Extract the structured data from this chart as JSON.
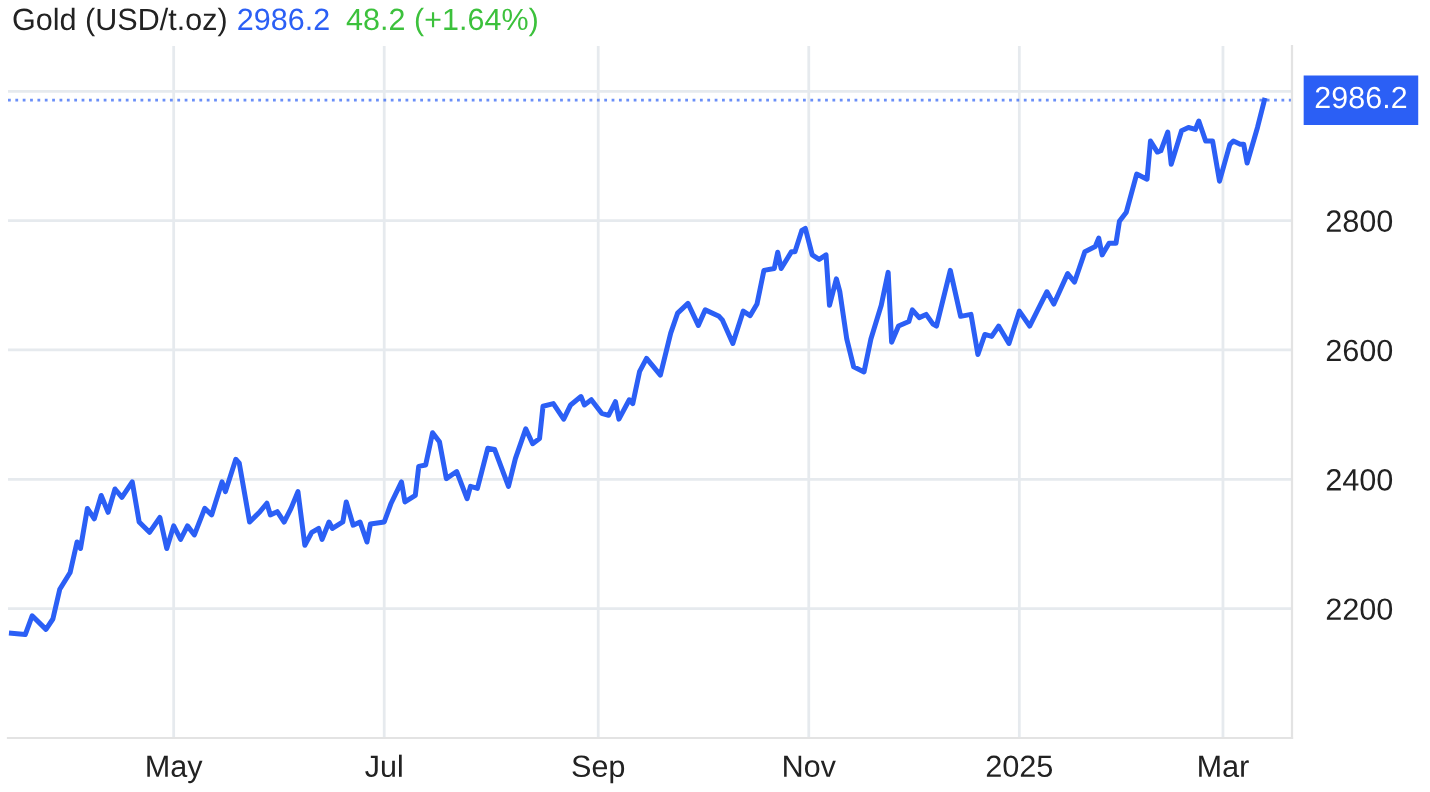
{
  "chart_data": {
    "type": "line",
    "title": "Gold (USD/t.oz)",
    "annotations": [
      "2986.2",
      "48.2 (+1.64%)"
    ],
    "x": [
      "2024-03-15",
      "2024-03-19",
      "2024-03-21",
      "2024-03-25",
      "2024-03-27",
      "2024-03-29",
      "2024-04-01",
      "2024-04-03",
      "2024-04-04",
      "2024-04-06",
      "2024-04-08",
      "2024-04-10",
      "2024-04-12",
      "2024-04-14",
      "2024-04-16",
      "2024-04-19",
      "2024-04-21",
      "2024-04-24",
      "2024-04-27",
      "2024-04-29",
      "2024-05-01",
      "2024-05-03",
      "2024-05-05",
      "2024-05-07",
      "2024-05-10",
      "2024-05-12",
      "2024-05-15",
      "2024-05-16",
      "2024-05-19",
      "2024-05-20",
      "2024-05-23",
      "2024-05-26",
      "2024-05-28",
      "2024-05-29",
      "2024-05-31",
      "2024-06-02",
      "2024-06-04",
      "2024-06-06",
      "2024-06-08",
      "2024-06-10",
      "2024-06-12",
      "2024-06-13",
      "2024-06-15",
      "2024-06-16",
      "2024-06-19",
      "2024-06-20",
      "2024-06-22",
      "2024-06-24",
      "2024-06-26",
      "2024-06-27",
      "2024-07-01",
      "2024-07-03",
      "2024-07-06",
      "2024-07-07",
      "2024-07-10",
      "2024-07-11",
      "2024-07-13",
      "2024-07-15",
      "2024-07-17",
      "2024-07-19",
      "2024-07-22",
      "2024-07-25",
      "2024-07-26",
      "2024-07-28",
      "2024-07-31",
      "2024-08-02",
      "2024-08-06",
      "2024-08-08",
      "2024-08-11",
      "2024-08-13",
      "2024-08-15",
      "2024-08-16",
      "2024-08-19",
      "2024-08-22",
      "2024-08-24",
      "2024-08-27",
      "2024-08-28",
      "2024-08-30",
      "2024-09-02",
      "2024-09-04",
      "2024-09-06",
      "2024-09-07",
      "2024-09-10",
      "2024-09-11",
      "2024-09-13",
      "2024-09-15",
      "2024-09-19",
      "2024-09-22",
      "2024-09-24",
      "2024-09-27",
      "2024-09-30",
      "2024-10-02",
      "2024-10-06",
      "2024-10-07",
      "2024-10-10",
      "2024-10-13",
      "2024-10-15",
      "2024-10-17",
      "2024-10-19",
      "2024-10-22",
      "2024-10-23",
      "2024-10-24",
      "2024-10-27",
      "2024-10-28",
      "2024-10-30",
      "2024-10-31",
      "2024-11-02",
      "2024-11-04",
      "2024-11-06",
      "2024-11-07",
      "2024-11-09",
      "2024-11-10",
      "2024-11-12",
      "2024-11-14",
      "2024-11-17",
      "2024-11-19",
      "2024-11-22",
      "2024-11-24",
      "2024-11-25",
      "2024-11-27",
      "2024-11-30",
      "2024-12-01",
      "2024-12-03",
      "2024-12-05",
      "2024-12-07",
      "2024-12-08",
      "2024-12-12",
      "2024-12-15",
      "2024-12-18",
      "2024-12-20",
      "2024-12-22",
      "2024-12-24",
      "2024-12-26",
      "2024-12-29",
      "2025-01-01",
      "2025-01-04",
      "2025-01-07",
      "2025-01-09",
      "2025-01-11",
      "2025-01-15",
      "2025-01-17",
      "2025-01-20",
      "2025-01-23",
      "2025-01-24",
      "2025-01-25",
      "2025-01-27",
      "2025-01-29",
      "2025-01-30",
      "2025-02-01",
      "2025-02-04",
      "2025-02-07",
      "2025-02-08",
      "2025-02-10",
      "2025-02-11",
      "2025-02-13",
      "2025-02-14",
      "2025-02-17",
      "2025-02-19",
      "2025-02-21",
      "2025-02-22",
      "2025-02-24",
      "2025-02-26",
      "2025-02-28",
      "2025-03-03",
      "2025-03-04",
      "2025-03-06",
      "2025-03-07",
      "2025-03-08",
      "2025-03-11",
      "2025-03-13"
    ],
    "series": [
      {
        "color": "#2b5ff5",
        "values": [
          2162,
          2160,
          2189,
          2168,
          2184,
          2230,
          2256,
          2303,
          2293,
          2355,
          2339,
          2375,
          2349,
          2385,
          2372,
          2396,
          2334,
          2318,
          2341,
          2293,
          2328,
          2307,
          2328,
          2314,
          2355,
          2345,
          2396,
          2381,
          2431,
          2425,
          2334,
          2350,
          2363,
          2345,
          2350,
          2334,
          2355,
          2381,
          2298,
          2318,
          2324,
          2307,
          2334,
          2324,
          2334,
          2365,
          2329,
          2334,
          2303,
          2331,
          2334,
          2363,
          2396,
          2365,
          2375,
          2420,
          2422,
          2472,
          2458,
          2401,
          2412,
          2370,
          2389,
          2386,
          2448,
          2446,
          2389,
          2432,
          2478,
          2455,
          2463,
          2513,
          2517,
          2493,
          2515,
          2528,
          2515,
          2523,
          2502,
          2499,
          2520,
          2493,
          2523,
          2517,
          2567,
          2587,
          2561,
          2626,
          2657,
          2672,
          2638,
          2662,
          2652,
          2646,
          2610,
          2660,
          2653,
          2671,
          2723,
          2726,
          2751,
          2726,
          2752,
          2752,
          2785,
          2788,
          2747,
          2740,
          2747,
          2669,
          2710,
          2690,
          2617,
          2574,
          2566,
          2617,
          2669,
          2720,
          2612,
          2637,
          2644,
          2662,
          2650,
          2655,
          2640,
          2637,
          2723,
          2652,
          2655,
          2593,
          2624,
          2621,
          2637,
          2610,
          2660,
          2637,
          2669,
          2690,
          2671,
          2718,
          2705,
          2752,
          2760,
          2773,
          2747,
          2765,
          2765,
          2799,
          2813,
          2872,
          2864,
          2923,
          2906,
          2908,
          2937,
          2887,
          2939,
          2944,
          2941,
          2954,
          2923,
          2923,
          2861,
          2918,
          2923,
          2918,
          2918,
          2889,
          2944,
          2986.2
        ]
      }
    ],
    "xlim": [
      "2024-03-14",
      "2025-03-21"
    ],
    "xticks": [
      {
        "value": "2024-05-01",
        "label": "May"
      },
      {
        "value": "2024-07-01",
        "label": "Jul"
      },
      {
        "value": "2024-09-01",
        "label": "Sep"
      },
      {
        "value": "2024-11-01",
        "label": "Nov"
      },
      {
        "value": "2025-01-01",
        "label": "2025"
      },
      {
        "value": "2025-03-01",
        "label": "Mar"
      }
    ],
    "ylim": [
      2000,
      3070
    ],
    "yticks": [
      2200,
      2400,
      2600,
      2800,
      {
        "value": 3000,
        "label": null
      }
    ],
    "ref_lines": [
      {
        "axis": "y",
        "value": 2986.2,
        "label": "2986.2",
        "color": "#2b5ff5",
        "line_style": "dotted"
      }
    ],
    "grid": true,
    "marker": "none",
    "line_style": "solid"
  }
}
